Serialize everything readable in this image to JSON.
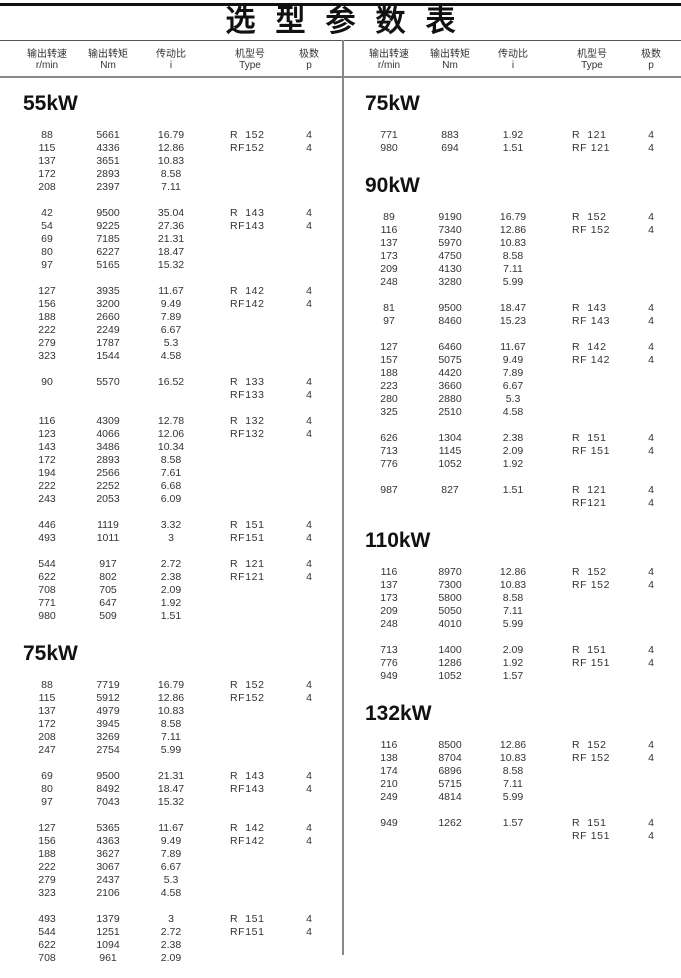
{
  "title": "选型参数表",
  "columns": [
    {
      "cn": "输出转速",
      "en": "r/min"
    },
    {
      "cn": "输出转矩",
      "en": "Nm"
    },
    {
      "cn": "传动比",
      "en": "i"
    },
    {
      "cn": "机型号",
      "en": "Type"
    },
    {
      "cn": "极数",
      "en": "p"
    }
  ],
  "left": [
    {
      "power": "55kW",
      "groups": [
        [
          [
            "88",
            "5661",
            "16.79",
            "R  152",
            "4"
          ],
          [
            "115",
            "4336",
            "12.86",
            "RF152",
            "4"
          ],
          [
            "137",
            "3651",
            "10.83"
          ],
          [
            "172",
            "2893",
            "8.58"
          ],
          [
            "208",
            "2397",
            "7.11"
          ]
        ],
        [
          [
            "42",
            "9500",
            "35.04",
            "R  143",
            "4"
          ],
          [
            "54",
            "9225",
            "27.36",
            "RF143",
            "4"
          ],
          [
            "69",
            "7185",
            "21.31"
          ],
          [
            "80",
            "6227",
            "18.47"
          ],
          [
            "97",
            "5165",
            "15.32"
          ]
        ],
        [
          [
            "127",
            "3935",
            "11.67",
            "R  142",
            "4"
          ],
          [
            "156",
            "3200",
            "9.49",
            "RF142",
            "4"
          ],
          [
            "188",
            "2660",
            "7.89"
          ],
          [
            "222",
            "2249",
            "6.67"
          ],
          [
            "279",
            "1787",
            "5.3"
          ],
          [
            "323",
            "1544",
            "4.58"
          ]
        ],
        [
          [
            "90",
            "5570",
            "16.52",
            "R  133",
            "4"
          ],
          [
            "",
            "",
            "",
            "RF133",
            "4"
          ]
        ],
        [
          [
            "116",
            "4309",
            "12.78",
            "R  132",
            "4"
          ],
          [
            "123",
            "4066",
            "12.06",
            "RF132",
            "4"
          ],
          [
            "143",
            "3486",
            "10.34"
          ],
          [
            "172",
            "2893",
            "8.58"
          ],
          [
            "194",
            "2566",
            "7.61"
          ],
          [
            "222",
            "2252",
            "6.68"
          ],
          [
            "243",
            "2053",
            "6.09"
          ]
        ],
        [
          [
            "446",
            "1119",
            "3.32",
            "R  151",
            "4"
          ],
          [
            "493",
            "1011",
            "3",
            "RF151",
            "4"
          ]
        ],
        [
          [
            "544",
            "917",
            "2.72",
            "R  121",
            "4"
          ],
          [
            "622",
            "802",
            "2.38",
            "RF121",
            "4"
          ],
          [
            "708",
            "705",
            "2.09"
          ],
          [
            "771",
            "647",
            "1.92"
          ],
          [
            "980",
            "509",
            "1.51"
          ]
        ]
      ]
    },
    {
      "power": "75kW",
      "groups": [
        [
          [
            "88",
            "7719",
            "16.79",
            "R  152",
            "4"
          ],
          [
            "115",
            "5912",
            "12.86",
            "RF152",
            "4"
          ],
          [
            "137",
            "4979",
            "10.83"
          ],
          [
            "172",
            "3945",
            "8.58"
          ],
          [
            "208",
            "3269",
            "7.11"
          ],
          [
            "247",
            "2754",
            "5.99"
          ]
        ],
        [
          [
            "69",
            "9500",
            "21.31",
            "R  143",
            "4"
          ],
          [
            "80",
            "8492",
            "18.47",
            "RF143",
            "4"
          ],
          [
            "97",
            "7043",
            "15.32"
          ]
        ],
        [
          [
            "127",
            "5365",
            "11.67",
            "R  142",
            "4"
          ],
          [
            "156",
            "4363",
            "9.49",
            "RF142",
            "4"
          ],
          [
            "188",
            "3627",
            "7.89"
          ],
          [
            "222",
            "3067",
            "6.67"
          ],
          [
            "279",
            "2437",
            "5.3"
          ],
          [
            "323",
            "2106",
            "4.58"
          ]
        ],
        [
          [
            "493",
            "1379",
            "3",
            "R  151",
            "4"
          ],
          [
            "544",
            "1251",
            "2.72",
            "RF151",
            "4"
          ],
          [
            "622",
            "1094",
            "2.38"
          ],
          [
            "708",
            "961",
            "2.09"
          ]
        ]
      ]
    }
  ],
  "right": [
    {
      "power": "75kW",
      "groups": [
        [
          [
            "771",
            "883",
            "1.92",
            "R  121",
            "4"
          ],
          [
            "980",
            "694",
            "1.51",
            "RF 121",
            "4"
          ]
        ]
      ]
    },
    {
      "power": "90kW",
      "groups": [
        [
          [
            "89",
            "9190",
            "16.79",
            "R  152",
            "4"
          ],
          [
            "116",
            "7340",
            "12.86",
            "RF 152",
            "4"
          ],
          [
            "137",
            "5970",
            "10.83"
          ],
          [
            "173",
            "4750",
            "8.58"
          ],
          [
            "209",
            "4130",
            "7.11"
          ],
          [
            "248",
            "3280",
            "5.99"
          ]
        ],
        [
          [
            "81",
            "9500",
            "18.47",
            "R  143",
            "4"
          ],
          [
            "97",
            "8460",
            "15.23",
            "RF 143",
            "4"
          ]
        ],
        [
          [
            "127",
            "6460",
            "11.67",
            "R  142",
            "4"
          ],
          [
            "157",
            "5075",
            "9.49",
            "RF 142",
            "4"
          ],
          [
            "188",
            "4420",
            "7.89"
          ],
          [
            "223",
            "3660",
            "6.67"
          ],
          [
            "280",
            "2880",
            "5.3"
          ],
          [
            "325",
            "2510",
            "4.58"
          ]
        ],
        [
          [
            "626",
            "1304",
            "2.38",
            "R  151",
            "4"
          ],
          [
            "713",
            "1145",
            "2.09",
            "RF 151",
            "4"
          ],
          [
            "776",
            "1052",
            "1.92"
          ]
        ],
        [
          [
            "987",
            "827",
            "1.51",
            "R  121",
            "4"
          ],
          [
            "",
            "",
            "",
            "RF121",
            "4"
          ]
        ]
      ]
    },
    {
      "power": "110kW",
      "groups": [
        [
          [
            "116",
            "8970",
            "12.86",
            "R  152",
            "4"
          ],
          [
            "137",
            "7300",
            "10.83",
            "RF 152",
            "4"
          ],
          [
            "173",
            "5800",
            "8.58"
          ],
          [
            "209",
            "5050",
            "7.11"
          ],
          [
            "248",
            "4010",
            "5.99"
          ]
        ],
        [
          [
            "713",
            "1400",
            "2.09",
            "R  151",
            "4"
          ],
          [
            "776",
            "1286",
            "1.92",
            "RF 151",
            "4"
          ],
          [
            "949",
            "1052",
            "1.57"
          ]
        ]
      ]
    },
    {
      "power": "132kW",
      "groups": [
        [
          [
            "116",
            "8500",
            "12.86",
            "R  152",
            "4"
          ],
          [
            "138",
            "8704",
            "10.83",
            "RF 152",
            "4"
          ],
          [
            "174",
            "6896",
            "8.58"
          ],
          [
            "210",
            "5715",
            "7.11"
          ],
          [
            "249",
            "4814",
            "5.99"
          ]
        ],
        [
          [
            "949",
            "1262",
            "1.57",
            "R  151",
            "4"
          ],
          [
            "",
            "",
            "",
            "RF 151",
            "4"
          ]
        ]
      ]
    }
  ]
}
